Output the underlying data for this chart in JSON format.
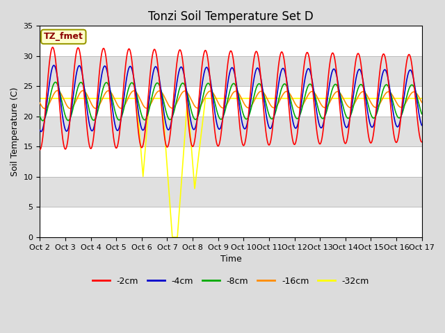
{
  "title": "Tonzi Soil Temperature Set D",
  "xlabel": "Time",
  "ylabel": "Soil Temperature (C)",
  "ylim": [
    0,
    35
  ],
  "xlim": [
    0,
    15
  ],
  "x_tick_labels": [
    "Oct 2",
    "Oct 3",
    "Oct 4",
    "Oct 5",
    "Oct 6",
    "Oct 7",
    "Oct 8",
    "Oct 9",
    "Oct 10",
    "Oct 11",
    "Oct 12",
    "Oct 13",
    "Oct 14",
    "Oct 15",
    "Oct 16",
    "Oct 17"
  ],
  "legend_label": "TZ_fmet",
  "legend_label_color": "#8B0000",
  "legend_box_facecolor": "#FFFFCC",
  "legend_box_edgecolor": "#999900",
  "series_labels": [
    "-2cm",
    "-4cm",
    "-8cm",
    "-16cm",
    "-32cm"
  ],
  "series_colors": [
    "#FF0000",
    "#0000CC",
    "#00AA00",
    "#FF8C00",
    "#FFFF00"
  ],
  "fig_facecolor": "#DCDCDC",
  "plot_bg_color": "#FFFFFF",
  "band_color": "#E0E0E0",
  "title_fontsize": 12,
  "axis_label_fontsize": 9,
  "tick_fontsize": 8,
  "line_width": 1.2,
  "n_points": 3000,
  "days": 15
}
